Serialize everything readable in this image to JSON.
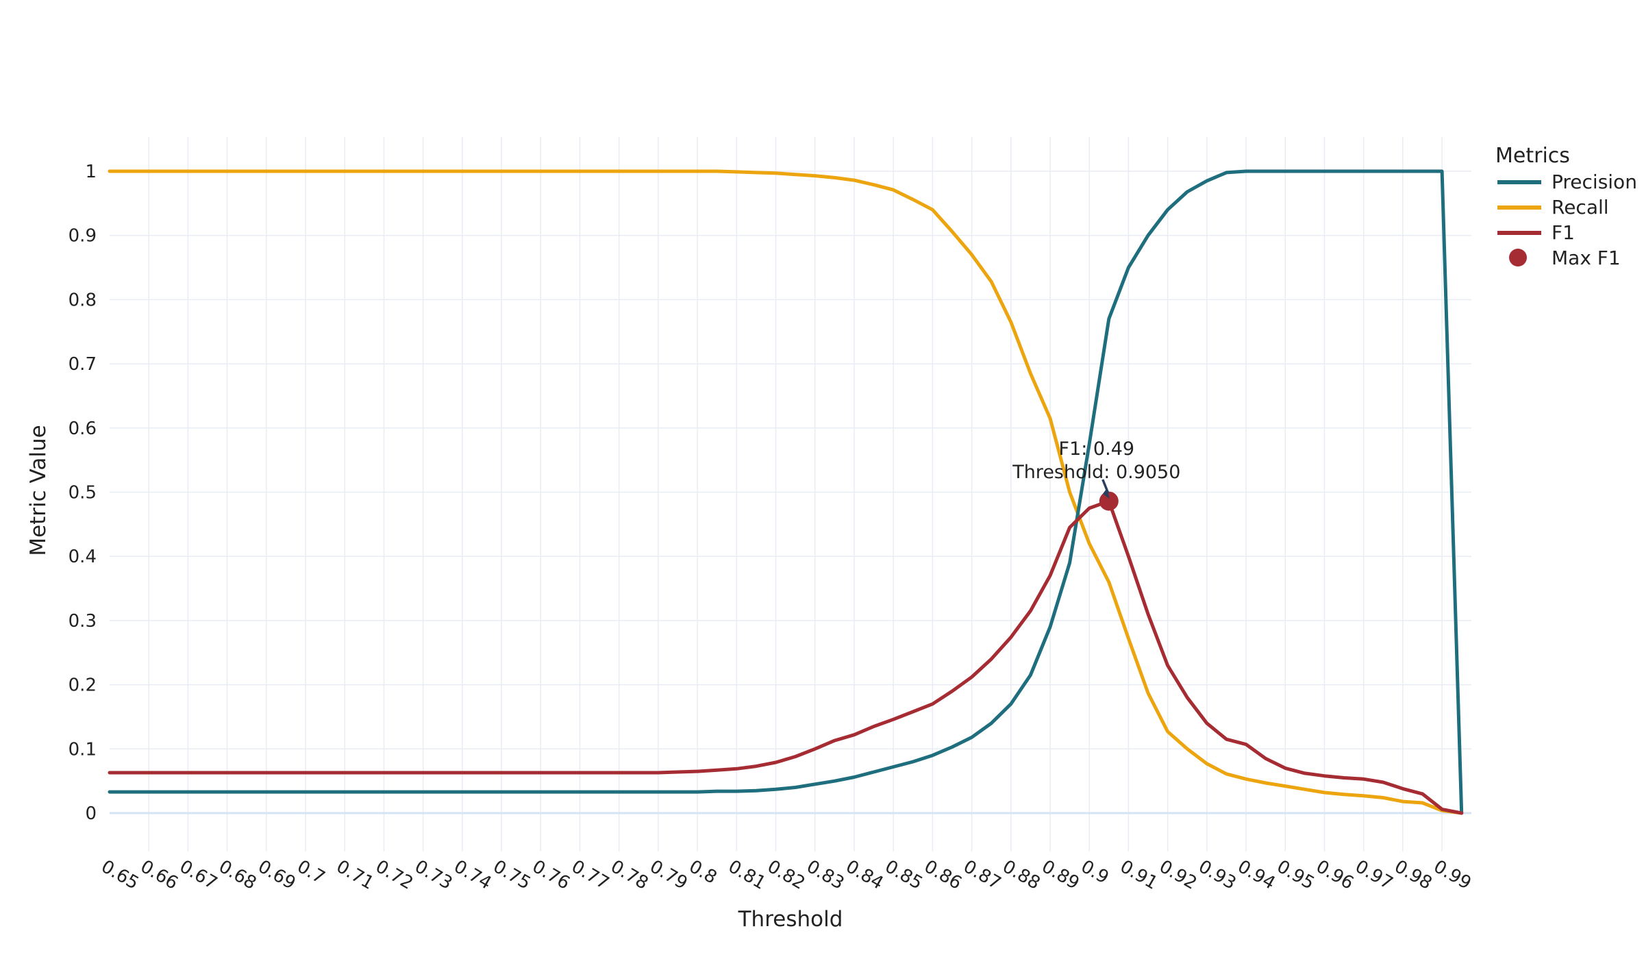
{
  "chart_data": {
    "type": "line",
    "title": "",
    "xlabel": "Threshold",
    "ylabel": "Metric Value",
    "legend_title": "Metrics",
    "legend_position": "top-right-outside",
    "grid": true,
    "xlim": [
      0.65,
      0.9975
    ],
    "ylim": [
      -0.06,
      1.05
    ],
    "x_tick_labels": [
      "0.65",
      "0.66",
      "0.67",
      "0.68",
      "0.69",
      "0.7",
      "0.71",
      "0.72",
      "0.73",
      "0.74",
      "0.75",
      "0.76",
      "0.77",
      "0.78",
      "0.79",
      "0.8",
      "0.81",
      "0.82",
      "0.83",
      "0.84",
      "0.85",
      "0.86",
      "0.87",
      "0.88",
      "0.89",
      "0.9",
      "0.91",
      "0.92",
      "0.93",
      "0.94",
      "0.95",
      "0.96",
      "0.97",
      "0.98",
      "0.99"
    ],
    "y_tick_labels": [
      "0",
      "0.1",
      "0.2",
      "0.3",
      "0.4",
      "0.5",
      "0.6",
      "0.7",
      "0.8",
      "0.9",
      "1"
    ],
    "x": [
      0.65,
      0.655,
      0.66,
      0.665,
      0.67,
      0.675,
      0.68,
      0.685,
      0.69,
      0.695,
      0.7,
      0.705,
      0.71,
      0.715,
      0.72,
      0.725,
      0.73,
      0.735,
      0.74,
      0.745,
      0.75,
      0.755,
      0.76,
      0.765,
      0.77,
      0.775,
      0.78,
      0.785,
      0.79,
      0.795,
      0.8,
      0.805,
      0.81,
      0.815,
      0.82,
      0.825,
      0.83,
      0.835,
      0.84,
      0.845,
      0.85,
      0.855,
      0.86,
      0.865,
      0.87,
      0.875,
      0.88,
      0.885,
      0.89,
      0.895,
      0.9,
      0.905,
      0.91,
      0.915,
      0.92,
      0.925,
      0.93,
      0.935,
      0.94,
      0.945,
      0.95,
      0.955,
      0.96,
      0.965,
      0.97,
      0.975,
      0.98,
      0.985,
      0.99,
      0.995
    ],
    "series": [
      {
        "name": "Precision",
        "color": "#1f6e7e",
        "values": [
          0.033,
          0.033,
          0.033,
          0.033,
          0.033,
          0.033,
          0.033,
          0.033,
          0.033,
          0.033,
          0.033,
          0.033,
          0.033,
          0.033,
          0.033,
          0.033,
          0.033,
          0.033,
          0.033,
          0.033,
          0.033,
          0.033,
          0.033,
          0.033,
          0.033,
          0.033,
          0.033,
          0.033,
          0.033,
          0.033,
          0.033,
          0.034,
          0.034,
          0.035,
          0.037,
          0.04,
          0.045,
          0.05,
          0.056,
          0.064,
          0.072,
          0.08,
          0.09,
          0.103,
          0.118,
          0.14,
          0.17,
          0.215,
          0.29,
          0.39,
          0.575,
          0.77,
          0.85,
          0.9,
          0.94,
          0.968,
          0.985,
          0.998,
          1,
          1,
          1,
          1,
          1,
          1,
          1,
          1,
          1,
          1,
          1,
          0
        ]
      },
      {
        "name": "Recall",
        "color": "#eca40f",
        "values": [
          1,
          1,
          1,
          1,
          1,
          1,
          1,
          1,
          1,
          1,
          1,
          1,
          1,
          1,
          1,
          1,
          1,
          1,
          1,
          1,
          1,
          1,
          1,
          1,
          1,
          1,
          1,
          1,
          1,
          1,
          1,
          1,
          0.999,
          0.998,
          0.997,
          0.995,
          0.993,
          0.99,
          0.986,
          0.979,
          0.971,
          0.956,
          0.94,
          0.906,
          0.87,
          0.828,
          0.765,
          0.685,
          0.615,
          0.5,
          0.42,
          0.36,
          0.272,
          0.187,
          0.127,
          0.1,
          0.077,
          0.061,
          0.053,
          0.047,
          0.042,
          0.037,
          0.032,
          0.029,
          0.027,
          0.024,
          0.018,
          0.016,
          0.004,
          0
        ]
      },
      {
        "name": "F1",
        "color": "#a62c33",
        "values": [
          0.063,
          0.063,
          0.063,
          0.063,
          0.063,
          0.063,
          0.063,
          0.063,
          0.063,
          0.063,
          0.063,
          0.063,
          0.063,
          0.063,
          0.063,
          0.063,
          0.063,
          0.063,
          0.063,
          0.063,
          0.063,
          0.063,
          0.063,
          0.063,
          0.063,
          0.063,
          0.063,
          0.063,
          0.063,
          0.064,
          0.065,
          0.067,
          0.069,
          0.073,
          0.079,
          0.088,
          0.1,
          0.113,
          0.122,
          0.135,
          0.146,
          0.158,
          0.17,
          0.19,
          0.212,
          0.24,
          0.274,
          0.315,
          0.37,
          0.445,
          0.475,
          0.486,
          0.4,
          0.31,
          0.23,
          0.18,
          0.14,
          0.115,
          0.107,
          0.085,
          0.07,
          0.062,
          0.058,
          0.055,
          0.053,
          0.048,
          0.038,
          0.03,
          0.006,
          0
        ]
      }
    ],
    "max_f1_marker": {
      "name": "Max F1",
      "color": "#a62c33",
      "threshold": 0.905,
      "value": 0.486
    },
    "annotation": {
      "line1": "F1: 0.49",
      "line2": "Threshold: 0.9050",
      "text_color": "#222222",
      "arrow_color": "#2a3f5f"
    }
  },
  "colors": {
    "background": "#ffffff",
    "grid": "#e8ecf4",
    "zero_line": "#d5e3f5",
    "tick_text": "#222222",
    "axis_title_text": "#222222",
    "precision": "#1f6e7e",
    "recall": "#eca40f",
    "f1": "#a62c33",
    "max_f1_marker": "#a62c33"
  }
}
